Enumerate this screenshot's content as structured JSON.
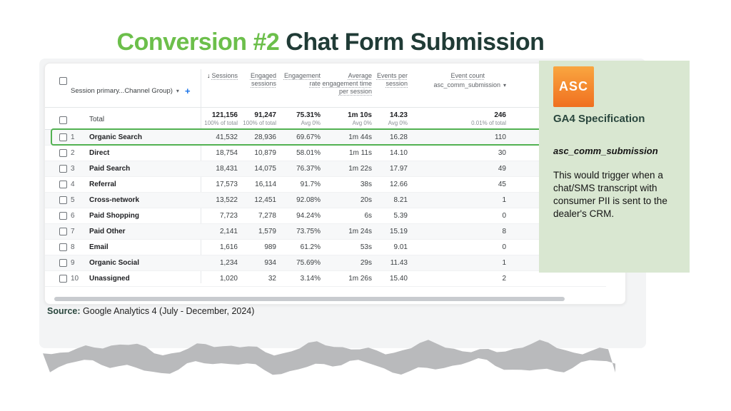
{
  "slide": {
    "title_highlight": "Conversion #2",
    "title_rest": " Chat Form Submission",
    "source_label": "Source:",
    "source_text": " Google Analytics 4 (July - December, 2024)"
  },
  "table": {
    "dimension_header": "Session primary...Channel Group)",
    "add_icon": "+",
    "sort_icon": "↓",
    "caret_icon": "▾",
    "columns": [
      {
        "label": "Sessions"
      },
      {
        "label": "Engaged sessions"
      },
      {
        "label": "Engagement rate"
      },
      {
        "label": "Average engagement time per session"
      },
      {
        "label": "Events per session"
      },
      {
        "label": "Event count",
        "sub": "asc_comm_submission"
      }
    ],
    "total": {
      "label": "Total",
      "values": [
        "121,156",
        "91,247",
        "75.31%",
        "1m 10s",
        "14.23",
        "246"
      ],
      "subs": [
        "100% of total",
        "100% of total",
        "Avg 0%",
        "Avg 0%",
        "Avg 0%",
        "0.01% of total"
      ]
    },
    "rows": [
      {
        "num": "1",
        "channel": "Organic Search",
        "values": [
          "41,532",
          "28,936",
          "69.67%",
          "1m 44s",
          "16.28",
          "110"
        ],
        "highlight": true
      },
      {
        "num": "2",
        "channel": "Direct",
        "values": [
          "18,754",
          "10,879",
          "58.01%",
          "1m 11s",
          "14.10",
          "30"
        ]
      },
      {
        "num": "3",
        "channel": "Paid Search",
        "values": [
          "18,431",
          "14,075",
          "76.37%",
          "1m 22s",
          "17.97",
          "49"
        ]
      },
      {
        "num": "4",
        "channel": "Referral",
        "values": [
          "17,573",
          "16,114",
          "91.7%",
          "38s",
          "12.66",
          "45"
        ]
      },
      {
        "num": "5",
        "channel": "Cross-network",
        "values": [
          "13,522",
          "12,451",
          "92.08%",
          "20s",
          "8.21",
          "1"
        ]
      },
      {
        "num": "6",
        "channel": "Paid Shopping",
        "values": [
          "7,723",
          "7,278",
          "94.24%",
          "6s",
          "5.39",
          "0"
        ]
      },
      {
        "num": "7",
        "channel": "Paid Other",
        "values": [
          "2,141",
          "1,579",
          "73.75%",
          "1m 24s",
          "15.19",
          "8"
        ]
      },
      {
        "num": "8",
        "channel": "Email",
        "values": [
          "1,616",
          "989",
          "61.2%",
          "53s",
          "9.01",
          "0"
        ]
      },
      {
        "num": "9",
        "channel": "Organic Social",
        "values": [
          "1,234",
          "934",
          "75.69%",
          "29s",
          "11.43",
          "1"
        ]
      },
      {
        "num": "10",
        "channel": "Unassigned",
        "values": [
          "1,020",
          "32",
          "3.14%",
          "1m 26s",
          "15.40",
          "2"
        ]
      }
    ]
  },
  "panel": {
    "logo": "ASC",
    "heading": "GA4 Specification",
    "event_name": "asc_comm_submission",
    "body": "This would trigger when a chat/SMS transcript with consumer PII is sent to the dealer's CRM.",
    "colors": {
      "panel_bg": "#d9e7d1",
      "logo_top": "#f9a640",
      "logo_bottom": "#f07020",
      "heading": "#29463d"
    }
  },
  "colors": {
    "title_green": "#6cbf4b",
    "title_dark": "#203b36",
    "highlight_border": "#52b152",
    "paper": "#f3f4f5",
    "torn_edge": "#b9babc"
  }
}
